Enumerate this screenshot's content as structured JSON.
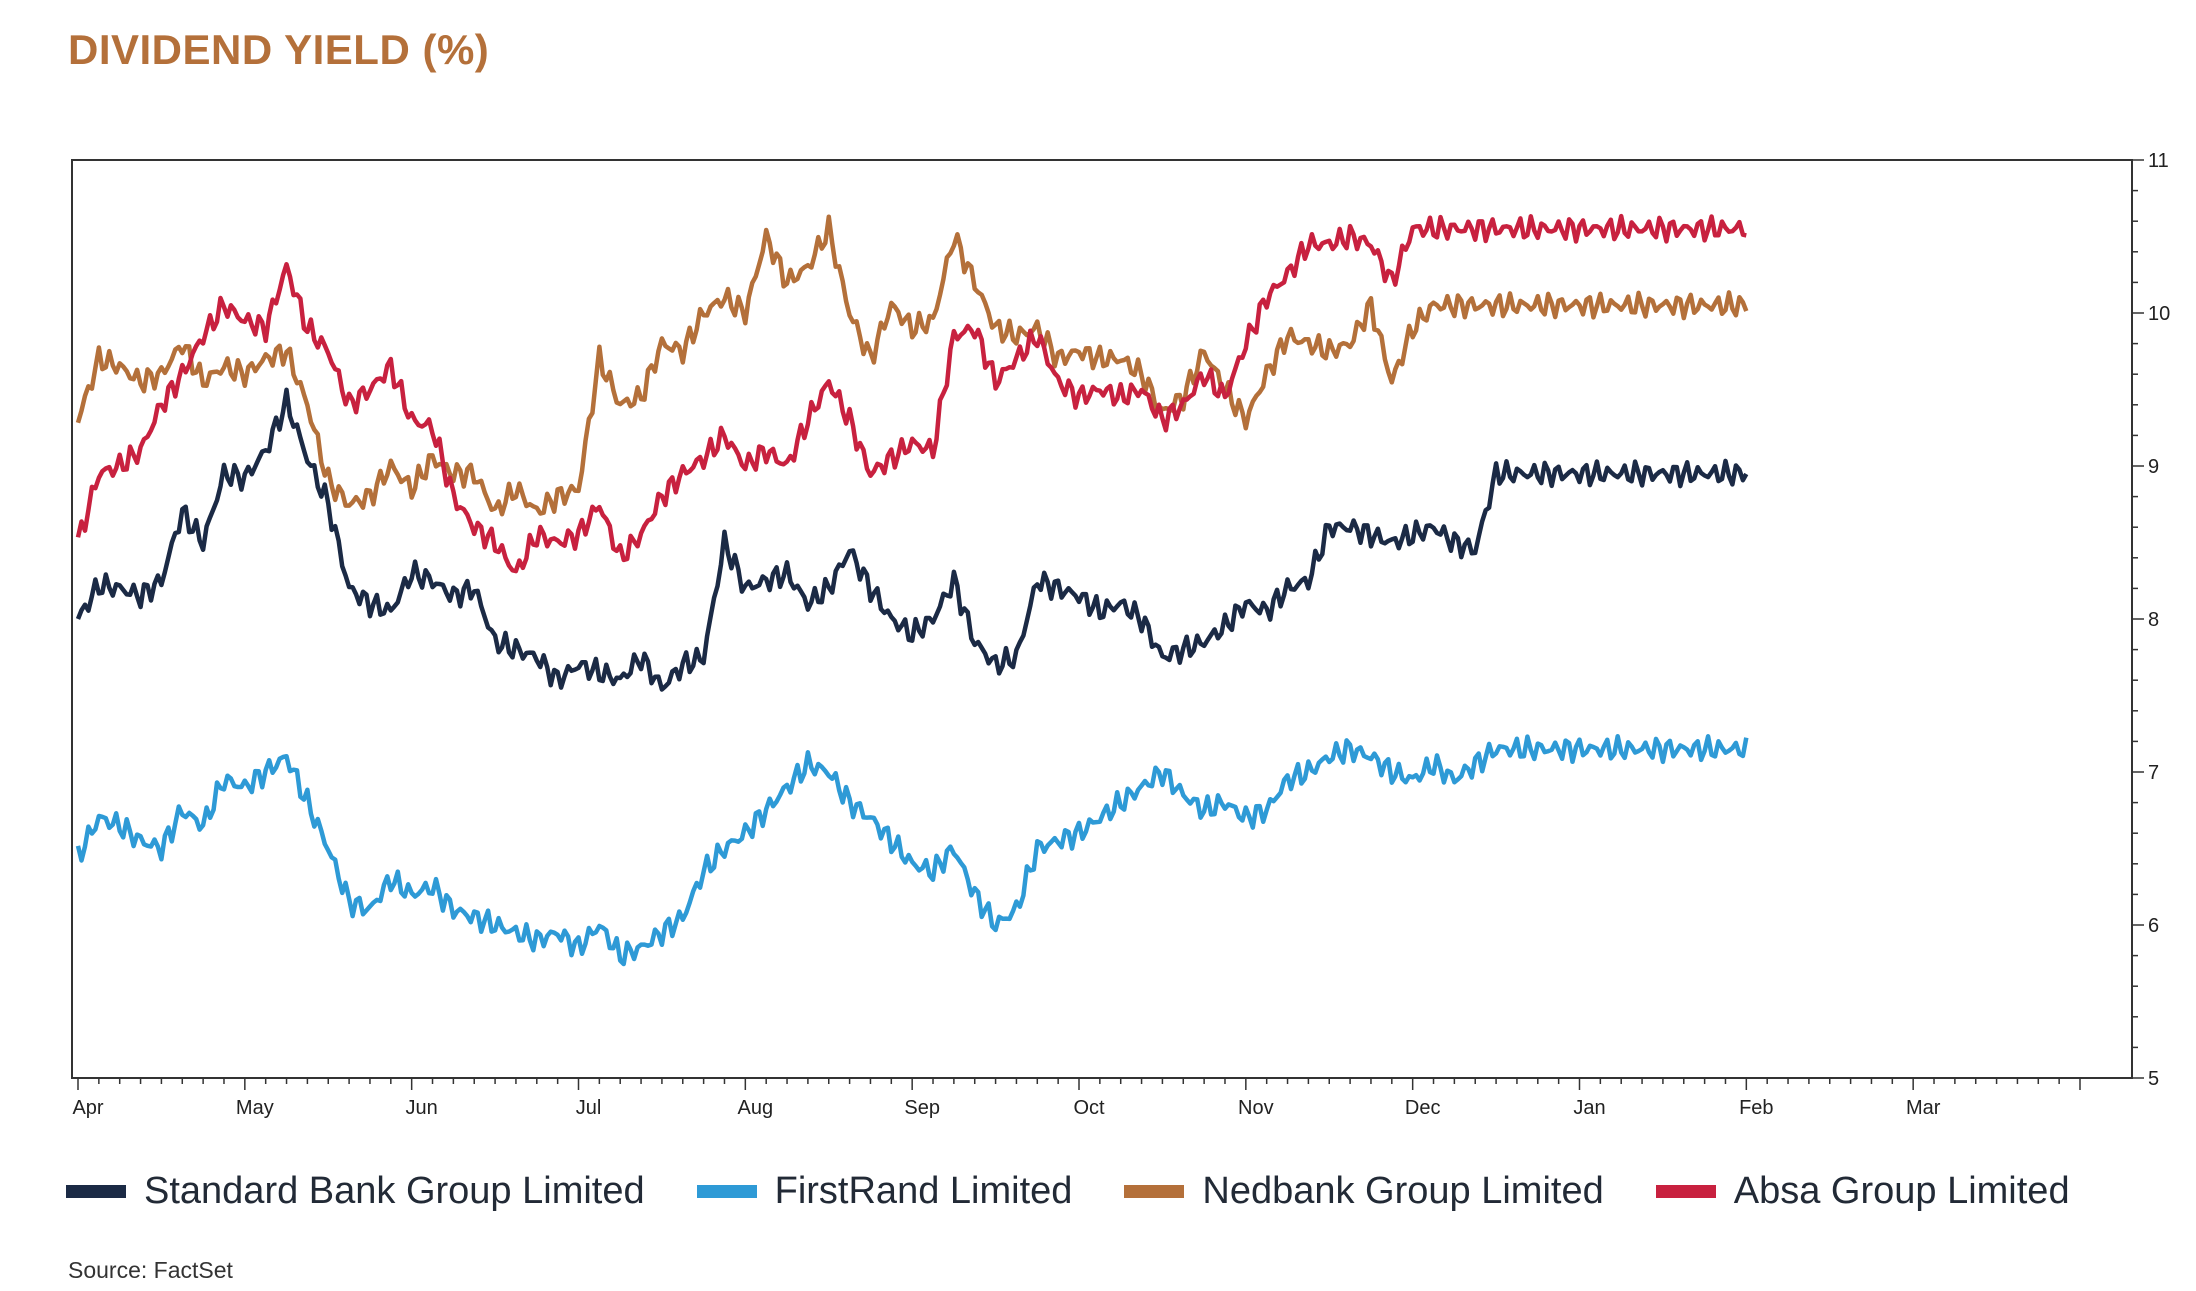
{
  "title": "DIVIDEND YIELD (%)",
  "source": "Source: FactSet",
  "chart_data": {
    "type": "line",
    "title": "DIVIDEND YIELD (%)",
    "xlabel": "",
    "ylabel": "",
    "ylim": [
      5,
      11
    ],
    "yticks": [
      5,
      6,
      7,
      8,
      9,
      10,
      11
    ],
    "y_axis_side": "right",
    "grid": false,
    "legend_position": "bottom",
    "month_labels": [
      "Apr",
      "May",
      "Jun",
      "Jul",
      "Aug",
      "Sep",
      "Oct",
      "Nov",
      "Dec",
      "Jan",
      "Feb",
      "Mar"
    ],
    "x": [
      0,
      0.25,
      0.5,
      0.75,
      1,
      1.25,
      1.5,
      1.75,
      2,
      2.25,
      2.5,
      2.75,
      3,
      3.25,
      3.5,
      3.75,
      4,
      4.25,
      4.5,
      4.75,
      5,
      5.25,
      5.5,
      5.75,
      6,
      6.25,
      6.5,
      6.75,
      7,
      7.25,
      7.5,
      7.75,
      8,
      8.25,
      8.5,
      8.75,
      9,
      9.25,
      9.5,
      9.75,
      10,
      10.25,
      10.5,
      10.75,
      11,
      11.25,
      11.5,
      11.75,
      12
    ],
    "series": [
      {
        "name": "Standard Bank Group Limited",
        "color": "#1b2a45",
        "values": [
          8.0,
          8.22,
          8.2,
          8.15,
          8.25,
          8.7,
          8.5,
          8.95,
          8.92,
          9.1,
          9.42,
          9.05,
          8.75,
          8.2,
          8.1,
          8.05,
          8.3,
          8.25,
          8.15,
          8.2,
          7.85,
          7.8,
          7.75,
          7.6,
          7.7,
          7.65,
          7.6,
          7.75,
          7.55,
          7.7,
          7.75,
          8.5,
          8.2,
          8.25,
          8.3,
          8.1,
          8.2,
          8.45,
          8.2,
          8.0,
          7.9,
          8.0,
          8.25,
          7.85,
          7.7,
          7.75,
          8.25,
          8.2,
          8.15
        ]
      },
      {
        "name": "FirstRand Limited",
        "color": "#2e9ad6",
        "values": [
          6.45,
          6.7,
          6.65,
          6.55,
          6.5,
          6.75,
          6.65,
          6.95,
          6.9,
          7.0,
          7.1,
          6.8,
          6.5,
          6.15,
          6.1,
          6.3,
          6.2,
          6.25,
          6.1,
          6.05,
          6.0,
          5.95,
          5.9,
          5.95,
          5.85,
          6.0,
          5.8,
          5.85,
          5.95,
          6.05,
          6.35,
          6.5,
          6.6,
          6.75,
          6.9,
          7.05,
          7.0,
          6.8,
          6.7,
          6.55,
          6.4,
          6.35,
          6.5,
          6.2,
          6.0,
          6.1,
          6.5,
          6.55,
          6.6
        ]
      },
      {
        "name": "Nedbank Group Limited",
        "color": "#b4703a",
        "values": [
          9.3,
          9.7,
          9.65,
          9.55,
          9.6,
          9.8,
          9.55,
          9.65,
          9.6,
          9.7,
          9.75,
          9.4,
          8.9,
          8.75,
          8.8,
          9.0,
          8.85,
          9.05,
          8.95,
          8.95,
          8.7,
          8.85,
          8.7,
          8.8,
          8.85,
          9.7,
          9.4,
          9.45,
          9.8,
          9.75,
          10.0,
          10.1,
          10.0,
          10.5,
          10.2,
          10.3,
          10.55,
          10.0,
          9.7,
          10.05,
          9.9,
          9.95,
          10.5,
          10.2,
          9.9,
          9.85,
          9.9,
          9.7,
          9.75
        ]
      },
      {
        "name": "Absa Group Limited",
        "color": "#c8213f",
        "values": [
          8.5,
          8.95,
          9.0,
          9.1,
          9.4,
          9.6,
          9.85,
          10.05,
          9.95,
          9.9,
          10.3,
          9.9,
          9.75,
          9.4,
          9.5,
          9.65,
          9.3,
          9.25,
          8.8,
          8.6,
          8.5,
          8.3,
          8.55,
          8.5,
          8.55,
          8.75,
          8.4,
          8.55,
          8.8,
          8.95,
          9.05,
          9.2,
          9.0,
          9.1,
          9.0,
          9.3,
          9.55,
          9.3,
          8.95,
          9.05,
          9.15,
          9.1,
          9.85,
          9.9,
          9.55,
          9.7,
          9.85,
          9.55,
          9.45
        ]
      }
    ]
  },
  "series_end_values": {
    "x": [
      12,
      12.25,
      12.5,
      12.75,
      13,
      13.25,
      13.5,
      13.75,
      14,
      14.25,
      14.5,
      14.75,
      15,
      15.25,
      15.5,
      15.75,
      16,
      16.25,
      16.5,
      16.75,
      17,
      17.25,
      17.5,
      17.75,
      18,
      18.25,
      18.5,
      18.75,
      19,
      19.25,
      19.5,
      19.75,
      20,
      20.25,
      20.5,
      20.75,
      21,
      21.25,
      21.5,
      21.75,
      22,
      22.25,
      22.5,
      22.75,
      23,
      23.25,
      23.5,
      23.75,
      24
    ],
    "Standard Bank Group Limited": [
      8.15,
      8.05,
      8.1,
      8.0,
      7.75,
      7.8,
      7.85,
      7.95,
      8.1,
      8.05,
      8.2,
      8.25,
      8.6,
      8.6,
      8.55,
      8.5,
      8.55,
      8.6,
      8.5,
      8.45,
      8.95,
      8.95,
      8.95,
      8.95,
      8.95,
      8.95,
      8.95,
      8.95,
      8.95,
      8.95,
      8.95,
      8.95,
      8.95,
      8.95,
      8.95,
      8.95,
      8.95,
      8.95,
      8.95,
      8.95,
      8.95,
      8.95,
      8.95,
      8.95,
      8.95,
      8.95,
      8.95,
      8.95,
      8.95
    ],
    "FirstRand Limited": [
      6.6,
      6.7,
      6.8,
      6.9,
      7.0,
      6.85,
      6.75,
      6.8,
      6.7,
      6.75,
      6.95,
      7.0,
      7.1,
      7.15,
      7.1,
      7.0,
      6.95,
      7.05,
      6.95,
      7.05,
      7.15,
      7.15,
      7.15,
      7.15,
      7.15,
      7.15,
      7.15,
      7.15,
      7.15,
      7.15,
      7.15,
      7.15,
      7.15,
      7.15,
      7.15,
      7.15,
      7.15,
      7.15,
      7.15,
      7.15,
      7.15,
      7.15,
      7.15,
      7.15,
      7.15,
      7.15,
      7.15,
      7.15,
      7.15
    ],
    "Nedbank Group Limited": [
      9.75,
      9.7,
      9.7,
      9.6,
      9.35,
      9.45,
      9.75,
      9.5,
      9.3,
      9.6,
      9.85,
      9.8,
      9.75,
      9.8,
      10.05,
      9.55,
      9.9,
      10.05,
      10.05,
      10.05,
      10.05,
      10.05,
      10.05,
      10.05,
      10.05,
      10.05,
      10.05,
      10.05,
      10.05,
      10.05,
      10.05,
      10.05,
      10.05,
      10.05,
      10.05,
      10.05,
      10.05,
      10.05,
      10.05,
      10.05,
      10.05,
      10.05,
      10.05,
      10.05,
      10.05,
      10.05,
      10.05,
      10.05,
      10.05
    ],
    "Absa Group Limited": [
      9.45,
      9.5,
      9.45,
      9.5,
      9.3,
      9.4,
      9.6,
      9.45,
      9.8,
      10.1,
      10.25,
      10.45,
      10.45,
      10.5,
      10.45,
      10.2,
      10.55,
      10.55,
      10.55,
      10.55,
      10.55,
      10.55,
      10.55,
      10.55,
      10.55,
      10.55,
      10.55,
      10.55,
      10.55,
      10.55,
      10.55,
      10.55,
      10.55,
      10.55,
      10.55,
      10.55,
      10.55,
      10.55,
      10.55,
      10.55,
      10.55,
      10.55,
      10.55,
      10.55,
      10.55,
      10.55,
      10.55,
      10.55,
      10.55
    ]
  },
  "legend": [
    {
      "label": "Standard Bank Group Limited",
      "color": "#1b2a45"
    },
    {
      "label": "FirstRand Limited",
      "color": "#2e9ad6"
    },
    {
      "label": "Nedbank Group Limited",
      "color": "#b4703a"
    },
    {
      "label": "Absa Group Limited",
      "color": "#c8213f"
    }
  ]
}
